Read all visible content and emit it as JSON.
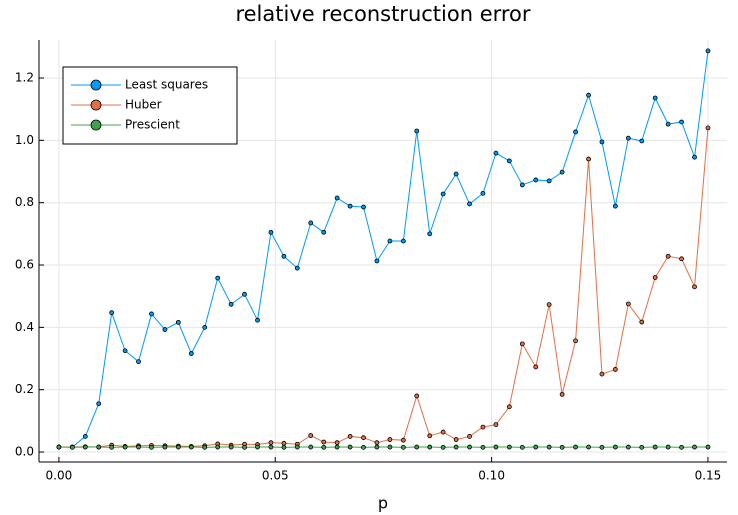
{
  "chart_data": {
    "type": "line",
    "title": "relative reconstruction error",
    "xlabel": "p",
    "x": [
      0,
      0.0031,
      0.0061,
      0.0092,
      0.0122,
      0.0153,
      0.0184,
      0.0214,
      0.0245,
      0.0276,
      0.0306,
      0.0337,
      0.0367,
      0.0398,
      0.0429,
      0.0459,
      0.049,
      0.052,
      0.0551,
      0.0582,
      0.0612,
      0.0643,
      0.0673,
      0.0704,
      0.0735,
      0.0765,
      0.0796,
      0.0827,
      0.0857,
      0.0888,
      0.0918,
      0.0949,
      0.098,
      0.101,
      0.1041,
      0.1071,
      0.1102,
      0.1133,
      0.1163,
      0.1194,
      0.1224,
      0.1255,
      0.1286,
      0.1316,
      0.1347,
      0.1378,
      0.1408,
      0.1439,
      0.1469,
      0.15
    ],
    "series": [
      {
        "name": "Least squares",
        "color": "#009af9",
        "values": [
          0.016,
          0.016,
          0.05,
          0.155,
          0.447,
          0.325,
          0.29,
          0.443,
          0.393,
          0.416,
          0.316,
          0.4,
          0.558,
          0.474,
          0.506,
          0.423,
          0.705,
          0.628,
          0.59,
          0.735,
          0.705,
          0.815,
          0.789,
          0.786,
          0.613,
          0.677,
          0.677,
          1.03,
          0.7,
          0.828,
          0.892,
          0.796,
          0.83,
          0.959,
          0.934,
          0.857,
          0.873,
          0.87,
          0.898,
          1.027,
          1.145,
          0.995,
          0.789,
          1.007,
          0.998,
          1.136,
          1.052,
          1.059,
          0.946,
          1.287
        ]
      },
      {
        "name": "Huber",
        "color": "#e26f46",
        "values": [
          0.016,
          0.016,
          0.017,
          0.016,
          0.022,
          0.018,
          0.02,
          0.021,
          0.02,
          0.019,
          0.018,
          0.02,
          0.026,
          0.022,
          0.025,
          0.024,
          0.03,
          0.028,
          0.025,
          0.053,
          0.032,
          0.03,
          0.05,
          0.046,
          0.03,
          0.04,
          0.038,
          0.18,
          0.052,
          0.064,
          0.04,
          0.05,
          0.08,
          0.088,
          0.145,
          0.347,
          0.273,
          0.473,
          0.185,
          0.357,
          0.94,
          0.25,
          0.265,
          0.475,
          0.417,
          0.56,
          0.628,
          0.62,
          0.53,
          1.04
        ]
      },
      {
        "name": "Prescient",
        "color": "#3da44d",
        "values": [
          0.016,
          0.015,
          0.016,
          0.016,
          0.015,
          0.016,
          0.016,
          0.015,
          0.016,
          0.016,
          0.016,
          0.015,
          0.016,
          0.016,
          0.015,
          0.016,
          0.016,
          0.015,
          0.016,
          0.016,
          0.015,
          0.016,
          0.016,
          0.015,
          0.016,
          0.016,
          0.015,
          0.016,
          0.016,
          0.015,
          0.016,
          0.016,
          0.015,
          0.016,
          0.016,
          0.015,
          0.016,
          0.016,
          0.015,
          0.016,
          0.016,
          0.015,
          0.016,
          0.016,
          0.015,
          0.016,
          0.016,
          0.015,
          0.016,
          0.016
        ]
      }
    ],
    "xlim": [
      -0.0046,
      0.1544
    ],
    "xticks": [
      {
        "value": 0,
        "label": "0.00"
      },
      0.05,
      {
        "value": 0.1,
        "label": "0.10"
      },
      0.15
    ],
    "ylim": [
      -0.032,
      1.322
    ],
    "yticks": [
      {
        "value": 0,
        "label": "0.0"
      },
      0.2,
      0.4,
      0.6,
      0.8,
      {
        "value": 1,
        "label": "1.0"
      },
      1.2
    ],
    "grid": true,
    "legend": "top-left"
  }
}
